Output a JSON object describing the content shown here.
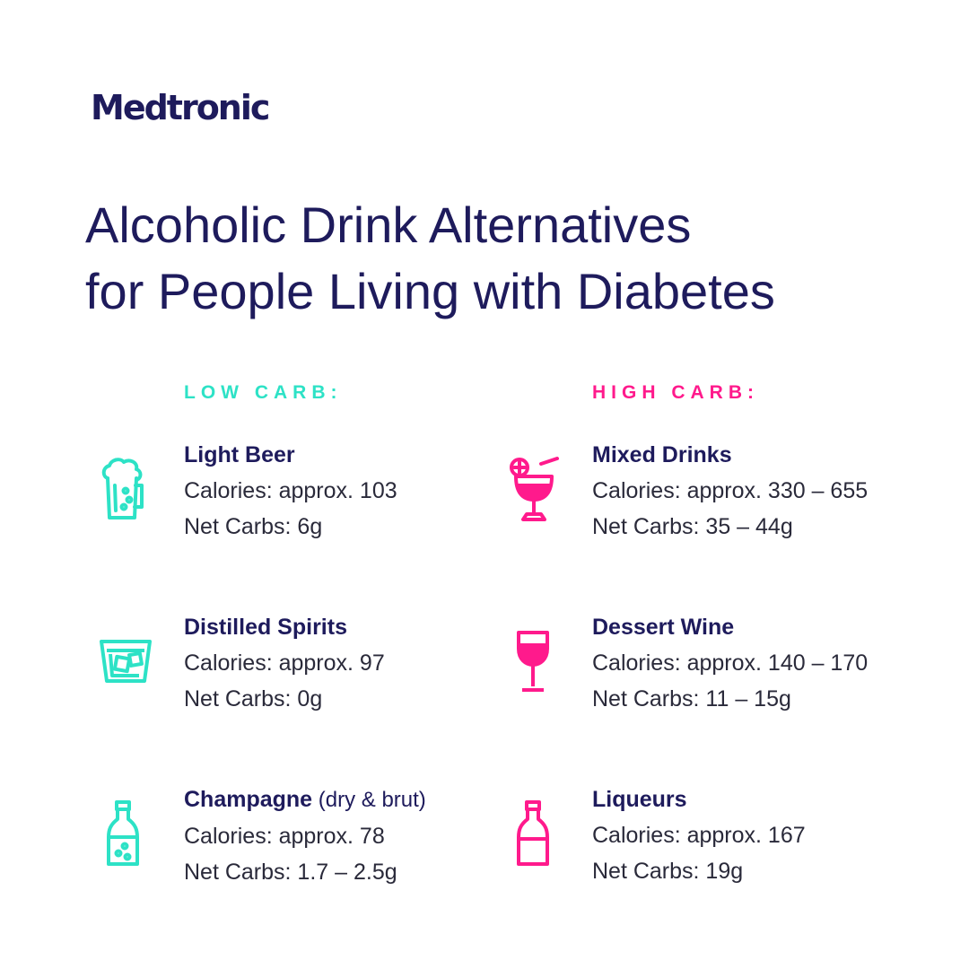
{
  "brand": {
    "name": "Medtronic"
  },
  "title": {
    "line1": "Alcoholic Drink Alternatives",
    "line2": "for People Living with Diabetes"
  },
  "colors": {
    "navy": "#1e1b5c",
    "low": "#2de2c6",
    "high": "#ff1a8c"
  },
  "low_carb": {
    "heading": "LOW CARB:",
    "items": [
      {
        "icon": "beer-mug-icon",
        "name": "Light Beer",
        "note": "",
        "calories": "Calories: approx. 103",
        "carbs": "Net Carbs: 6g"
      },
      {
        "icon": "rocks-glass-icon",
        "name": "Distilled Spirits",
        "note": "",
        "calories": "Calories: approx. 97",
        "carbs": "Net Carbs: 0g"
      },
      {
        "icon": "champagne-bottle-icon",
        "name": "Champagne",
        "note": " (dry & brut)",
        "calories": "Calories: approx. 78",
        "carbs": "Net Carbs: 1.7 – 2.5g"
      }
    ]
  },
  "high_carb": {
    "heading": "HIGH CARB:",
    "items": [
      {
        "icon": "cocktail-glass-icon",
        "name": "Mixed Drinks",
        "note": "",
        "calories": "Calories: approx. 330 – 655",
        "carbs": "Net Carbs: 35 – 44g"
      },
      {
        "icon": "wine-glass-icon",
        "name": "Dessert Wine",
        "note": "",
        "calories": "Calories: approx. 140 – 170",
        "carbs": "Net Carbs: 11 – 15g"
      },
      {
        "icon": "liqueur-bottle-icon",
        "name": "Liqueurs",
        "note": "",
        "calories": "Calories: approx. 167",
        "carbs": "Net Carbs: 19g"
      }
    ]
  }
}
